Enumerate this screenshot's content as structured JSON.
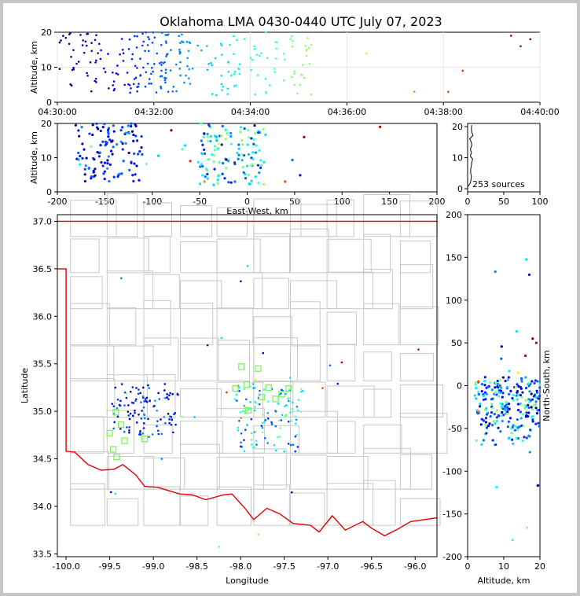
{
  "title": "Oklahoma LMA 0430-0440 UTC July 07, 2023",
  "source_count_label": "253 sources",
  "colors": {
    "map_border": "#e00000",
    "county_lines": "#c8c8c8",
    "station": "#7cf55a"
  },
  "chart_data": [
    {
      "type": "scatter",
      "name": "time-height",
      "xlabel": "",
      "ylabel": "Altitude, km",
      "x_ticks": [
        "04:30:00",
        "04:32:00",
        "04:34:00",
        "04:36:00",
        "04:38:00",
        "04:40:00"
      ],
      "xlim_minutes": [
        0,
        10
      ],
      "ylim": [
        0,
        20
      ],
      "y_ticks": [
        0,
        10,
        20
      ],
      "grid": true
    },
    {
      "type": "scatter",
      "name": "east-west-height",
      "xlabel": "East-West, km",
      "ylabel": "Altitude, km",
      "xlim": [
        -200,
        200
      ],
      "x_ticks": [
        -200,
        -150,
        -100,
        -50,
        0,
        50,
        100,
        150,
        200
      ],
      "ylim": [
        0,
        20
      ],
      "y_ticks": [
        0,
        10,
        20
      ]
    },
    {
      "type": "histogram",
      "name": "altitude-histogram",
      "xlim": [
        0,
        100
      ],
      "x_ticks": [
        0,
        50,
        100
      ],
      "ylim": [
        0,
        20
      ],
      "y_ticks": [
        0,
        10,
        20
      ]
    },
    {
      "type": "scatter",
      "name": "plan-view-map",
      "xlabel": "Longitude",
      "ylabel": "Latitude",
      "xlim": [
        -100.1,
        -95.75
      ],
      "x_ticks": [
        -100.0,
        -99.5,
        -99.0,
        -98.5,
        -98.0,
        -97.5,
        -97.0,
        -96.5,
        -96.0
      ],
      "ylim": [
        33.47,
        37.07
      ],
      "y_ticks": [
        33.5,
        34.0,
        34.5,
        35.0,
        35.5,
        36.0,
        36.5,
        37.0
      ],
      "stations": [
        [
          -98.06,
          35.24
        ],
        [
          -97.99,
          35.47
        ],
        [
          -97.93,
          35.28
        ],
        [
          -97.91,
          35.01
        ],
        [
          -97.8,
          35.45
        ],
        [
          -97.76,
          35.15
        ],
        [
          -97.68,
          35.25
        ],
        [
          -97.6,
          35.13
        ],
        [
          -97.53,
          35.18
        ],
        [
          -97.45,
          35.24
        ],
        [
          -99.43,
          34.99
        ],
        [
          -99.37,
          34.86
        ],
        [
          -99.33,
          34.69
        ],
        [
          -99.42,
          34.52
        ],
        [
          -99.46,
          34.6
        ],
        [
          -99.5,
          34.77
        ],
        [
          -99.1,
          34.71
        ]
      ]
    },
    {
      "type": "scatter",
      "name": "north-south-height",
      "xlabel": "Altitude, km",
      "ylabel": "North-South, km",
      "xlim": [
        0,
        20
      ],
      "x_ticks": [
        0,
        10,
        20
      ],
      "ylim": [
        -200,
        200
      ],
      "y_ticks": [
        200,
        150,
        100,
        50,
        0,
        -50,
        -100,
        -150,
        -200
      ]
    }
  ]
}
